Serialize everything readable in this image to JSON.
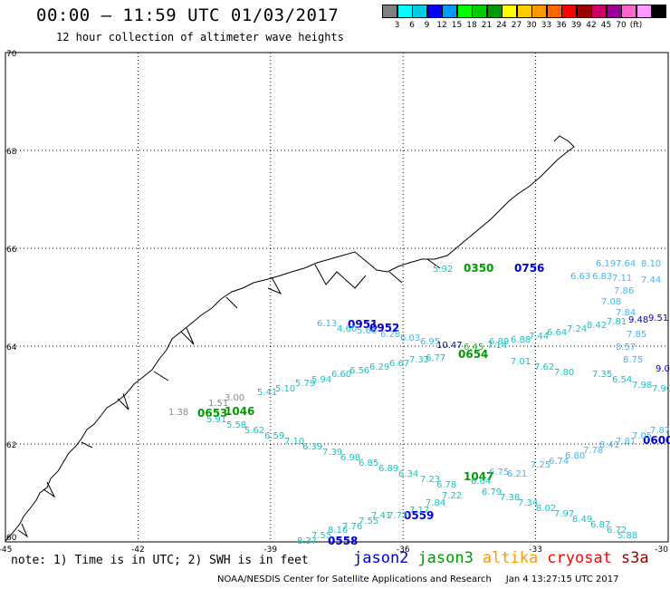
{
  "header": {
    "title": "00:00 – 11:59 UTC 01/03/2017",
    "subtitle": "12 hour collection of altimeter wave heights"
  },
  "legend": {
    "colors": [
      "#7f7f7f",
      "#00ffff",
      "#00cce6",
      "#0000ff",
      "#0099ff",
      "#00ff00",
      "#00cc00",
      "#009900",
      "#ffff00",
      "#ffcc00",
      "#ff9900",
      "#ff6600",
      "#ff0000",
      "#990000",
      "#cc0066",
      "#990099",
      "#ff66cc",
      "#ff99ff",
      "#000000"
    ],
    "labels": [
      "3",
      "6",
      "9",
      "12",
      "15",
      "18",
      "21",
      "24",
      "27",
      "30",
      "33",
      "36",
      "39",
      "42",
      "45",
      "70",
      "(ft)"
    ]
  },
  "map": {
    "lat_labels": [
      "70",
      "68",
      "66",
      "64",
      "62",
      "60"
    ],
    "lon_labels": [
      "-45",
      "-42",
      "-39",
      "-36",
      "-33",
      "-30"
    ]
  },
  "footer": {
    "note": "note: 1) Time is in UTC; 2) SWH is in feet",
    "satellites": [
      {
        "name": "jason2",
        "color": "#0000cc"
      },
      {
        "name": "jason3",
        "color": "#009900"
      },
      {
        "name": "altika",
        "color": "#ff9900"
      },
      {
        "name": "cryosat",
        "color": "#ff0000"
      },
      {
        "name": "s3a",
        "color": "#990000"
      }
    ],
    "credit": "NOAA/NESDIS Center for Satellite Applications and Research",
    "timestamp": "Jan 4 13:27:15 UTC 2017"
  },
  "tracks": {
    "time_labels": [
      {
        "text": "0350",
        "color": "#009900"
      },
      {
        "text": "0756",
        "color": "#0000cc"
      },
      {
        "text": "0951",
        "color": "#0000cc"
      },
      {
        "text": "0952",
        "color": "#0000cc"
      },
      {
        "text": "0654",
        "color": "#009900"
      },
      {
        "text": "0653",
        "color": "#009900"
      },
      {
        "text": "1046",
        "color": "#009900"
      },
      {
        "text": "0600",
        "color": "#0000cc"
      },
      {
        "text": "1047",
        "color": "#009900"
      },
      {
        "text": "0559",
        "color": "#0000cc"
      },
      {
        "text": "0558",
        "color": "#0000cc"
      }
    ],
    "values": [
      "5.92",
      "6.19",
      "7.64",
      "8.10",
      "6.63",
      "6.83",
      "7.11",
      "7.44",
      "7.86",
      "7.08",
      "7.84",
      "9.48",
      "9.51",
      "7.85",
      "8.57",
      "8.75",
      "9.0",
      "6.13",
      "4.60",
      "5.66",
      "6.28",
      "6.03",
      "6.95",
      "10.47",
      "6.45",
      "6.89",
      "7.14",
      "6.88",
      "7.44",
      "6.64",
      "7.24",
      "8.42",
      "7.81",
      "6.77",
      "7.32",
      "6.67",
      "6.29",
      "6.56",
      "6.60",
      "5.94",
      "5.79",
      "5.10",
      "5.41",
      "7.01",
      "7.62",
      "7.80",
      "7.35",
      "6.54",
      "7.98",
      "7.90",
      "1.51",
      "3.00",
      "1.38",
      "5.91",
      "5.58",
      "5.62",
      "6.59",
      "7.10",
      "6.39",
      "7.39",
      "6.98",
      "6.85",
      "6.89",
      "6.34",
      "7.23",
      "6.78",
      "7.25",
      "6.74",
      "6.80",
      "7.78",
      "8.41",
      "7.81",
      "7.05",
      "7.87",
      "6.75",
      "6.21",
      "6.64",
      "6.79",
      "7.38",
      "7.34",
      "8.02",
      "7.97",
      "8.49",
      "6.87",
      "6.72",
      "5.88",
      "7.22",
      "7.84",
      "7.17",
      "7.77",
      "7.41",
      "7.55",
      "7.76",
      "8.16",
      "7.55",
      "8.37",
      "8.12"
    ]
  }
}
